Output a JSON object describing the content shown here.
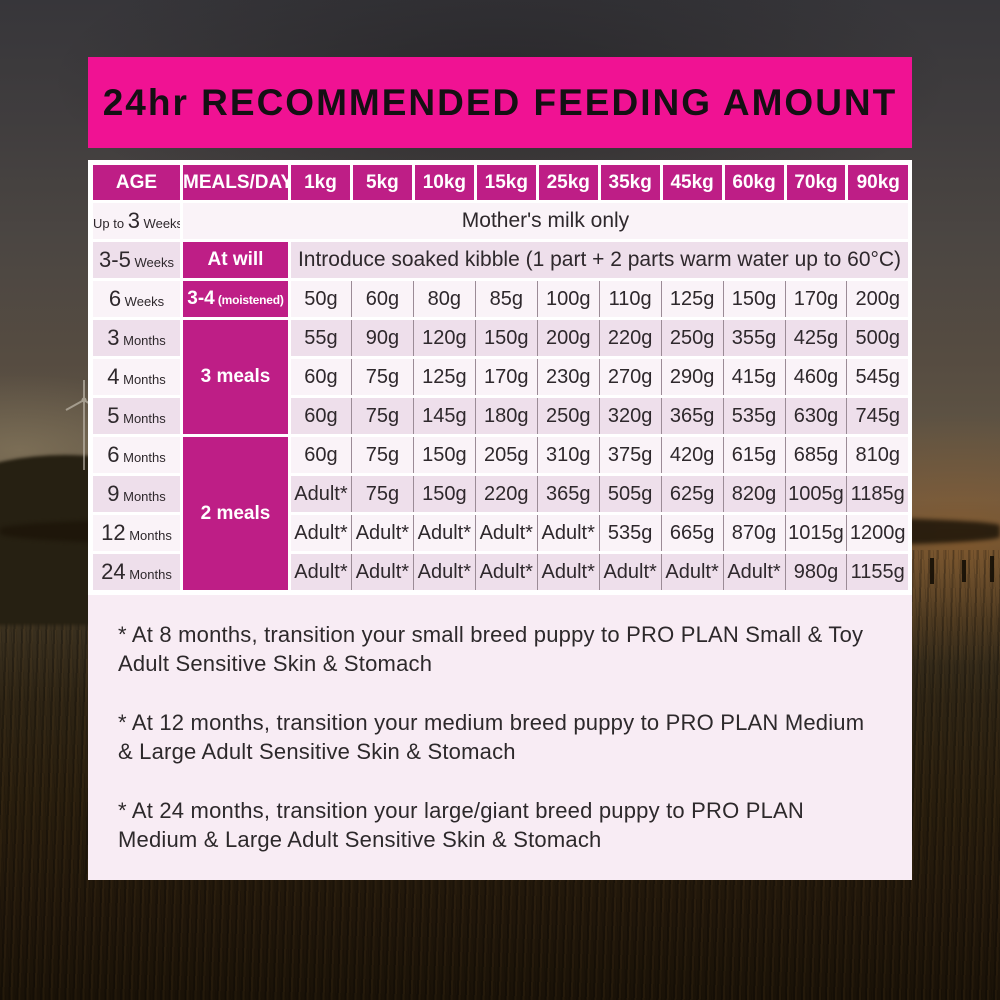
{
  "banner": {
    "title": "24hr RECOMMENDED FEEDING AMOUNT"
  },
  "colors": {
    "banner_pink": "#f01293",
    "header_magenta": "#be1e86",
    "row_light": "#faf3f8",
    "row_pink": "#eedfeb",
    "notes_bg": "#f8ecf4",
    "text_dark": "#2e282c"
  },
  "chart_data": {
    "type": "table",
    "title": "24hr RECOMMENDED FEEDING AMOUNT",
    "columns": [
      "AGE",
      "MEALS/DAY",
      "1kg",
      "5kg",
      "10kg",
      "15kg",
      "25kg",
      "35kg",
      "45kg",
      "60kg",
      "70kg",
      "90kg"
    ],
    "rows": [
      {
        "age": {
          "prefix": "Up to",
          "num": "3",
          "unit": "Weeks"
        },
        "span_text": "Mother's milk only",
        "span_cols": 11
      },
      {
        "age": {
          "num": "3-5",
          "unit": "Weeks"
        },
        "meals": {
          "text": "At will"
        },
        "span_text": "Introduce soaked kibble (1 part + 2 parts warm water up to 60°C)",
        "span_cols": 10
      },
      {
        "age": {
          "num": "6",
          "unit": "Weeks"
        },
        "meals": {
          "text": "3-4",
          "note": "(moistened)"
        },
        "values": [
          "50g",
          "60g",
          "80g",
          "85g",
          "100g",
          "110g",
          "125g",
          "150g",
          "170g",
          "200g"
        ]
      },
      {
        "age": {
          "num": "3",
          "unit": "Months"
        },
        "meals": {
          "text": "3 meals",
          "rowspan": 3
        },
        "values": [
          "55g",
          "90g",
          "120g",
          "150g",
          "200g",
          "220g",
          "250g",
          "355g",
          "425g",
          "500g"
        ]
      },
      {
        "age": {
          "num": "4",
          "unit": "Months"
        },
        "values": [
          "60g",
          "75g",
          "125g",
          "170g",
          "230g",
          "270g",
          "290g",
          "415g",
          "460g",
          "545g"
        ]
      },
      {
        "age": {
          "num": "5",
          "unit": "Months"
        },
        "values": [
          "60g",
          "75g",
          "145g",
          "180g",
          "250g",
          "320g",
          "365g",
          "535g",
          "630g",
          "745g"
        ]
      },
      {
        "age": {
          "num": "6",
          "unit": "Months"
        },
        "meals": {
          "text": "2 meals",
          "rowspan": 4
        },
        "values": [
          "60g",
          "75g",
          "150g",
          "205g",
          "310g",
          "375g",
          "420g",
          "615g",
          "685g",
          "810g"
        ]
      },
      {
        "age": {
          "num": "9",
          "unit": "Months"
        },
        "values": [
          "Adult*",
          "75g",
          "150g",
          "220g",
          "365g",
          "505g",
          "625g",
          "820g",
          "1005g",
          "1185g"
        ]
      },
      {
        "age": {
          "num": "12",
          "unit": "Months"
        },
        "values": [
          "Adult*",
          "Adult*",
          "Adult*",
          "Adult*",
          "Adult*",
          "535g",
          "665g",
          "870g",
          "1015g",
          "1200g"
        ]
      },
      {
        "age": {
          "num": "24",
          "unit": "Months"
        },
        "values": [
          "Adult*",
          "Adult*",
          "Adult*",
          "Adult*",
          "Adult*",
          "Adult*",
          "Adult*",
          "Adult*",
          "980g",
          "1155g"
        ]
      }
    ]
  },
  "notes": [
    "* At 8 months, transition your small breed puppy to PRO PLAN Small & Toy Adult Sensitive Skin & Stomach",
    "* At 12 months, transition your medium breed puppy to PRO PLAN Medium & Large Adult Sensitive Skin & Stomach",
    "* At 24 months, transition your large/giant breed puppy to PRO PLAN Medium & Large Adult Sensitive Skin & Stomach"
  ]
}
